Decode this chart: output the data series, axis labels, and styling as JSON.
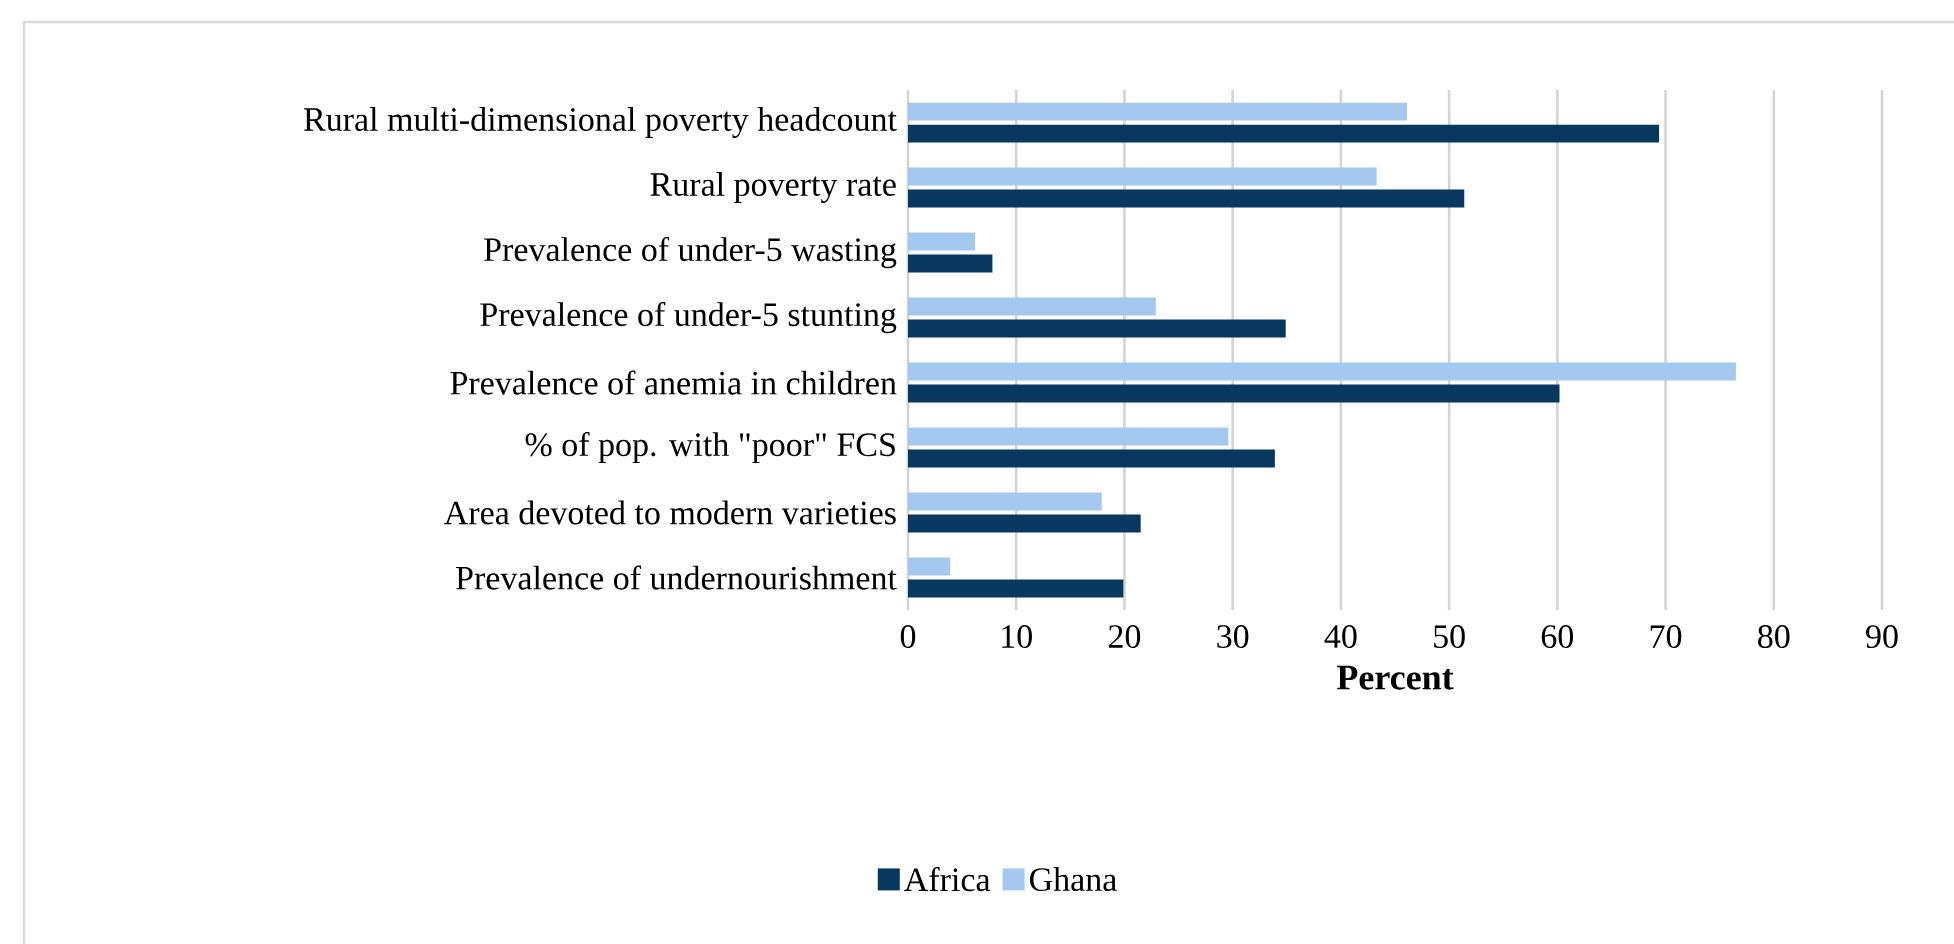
{
  "chart_data": {
    "type": "bar",
    "orientation": "horizontal",
    "xlabel": "Percent",
    "categories": [
      "Rural multi-dimensional poverty headcount",
      "Rural poverty rate",
      "Prevalence of under-5 wasting",
      "Prevalence of under-5 stunting",
      "Prevalence of anemia in children",
      "% of pop. with \"poor\" FCS",
      "Area devoted to modern varieties",
      "Prevalence of undernourishment"
    ],
    "series": [
      {
        "name": "Africa",
        "color": "#08375f",
        "values": [
          69.4,
          51.4,
          7.8,
          34.9,
          60.2,
          33.9,
          21.5,
          19.9
        ]
      },
      {
        "name": "Ghana",
        "color": "#a4c8f0",
        "values": [
          46.1,
          43.3,
          6.2,
          22.9,
          76.5,
          29.6,
          17.9,
          3.9
        ]
      }
    ],
    "xlim": [
      0,
      90
    ],
    "xticks": [
      0,
      10,
      20,
      30,
      40,
      50,
      60,
      70,
      80,
      90
    ],
    "grid": "x",
    "legend": "bottom"
  }
}
